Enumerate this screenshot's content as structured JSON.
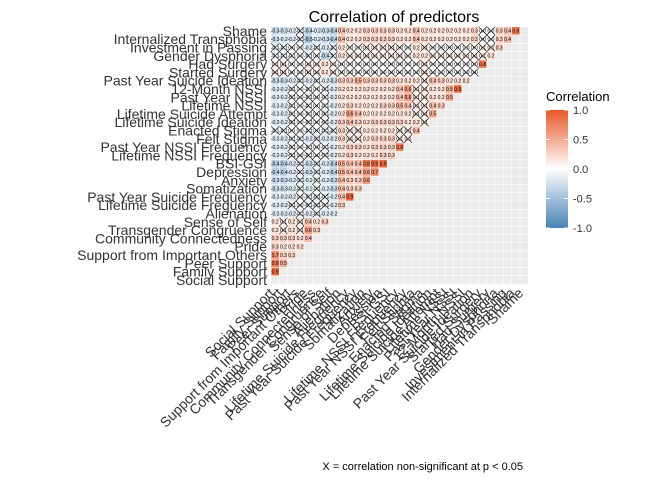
{
  "chart_data": {
    "type": "heatmap",
    "title": "Correlation of predictors",
    "caption": "X = correlation non-significant at p < 0.05",
    "legend": {
      "title": "Correlation",
      "ticks": [
        1.0,
        0.5,
        0.0,
        -0.5,
        -1.0
      ],
      "tick_labels": [
        "1.0",
        "0.5",
        "0.0",
        "-0.5",
        "-1.0"
      ],
      "placement": "right"
    },
    "colors": {
      "low": "#4682b4",
      "mid": "#ffffff",
      "high": "#e8582a",
      "background": "#ebebeb"
    },
    "variables": [
      "Social Support",
      "Family Support",
      "Peer Support",
      "Support from Important Others",
      "Pride",
      "Community Connectedness",
      "Transgender Congruence",
      "Sense of Self",
      "Alienation",
      "Lifetime Suicide Frequency",
      "Past Year Suicide Frequency",
      "Somatization",
      "Anxiety",
      "Depression",
      "BSI-GSI",
      "Lifetime NSSI Frequency",
      "Past Year NSSI Frequency",
      "Felt Stigma",
      "Enacted Stigma",
      "Lifetime Suicide Ideation",
      "Lifetime Suicide Attempt",
      "Lifetime NSSI",
      "Past Year NSSI",
      "12-Month NSSI",
      "Past Year Suicide Ideation",
      "Started Surgery",
      "Had Surgery",
      "Gender Dysphoria",
      "Investment in Passing",
      "Internalized Transphobia",
      "Shame"
    ],
    "ylim_note": "lower-triangle correlation matrix",
    "values_rows": [
      [
        0.9
      ],
      [
        0.8,
        0.5
      ],
      [
        0.7,
        0.3,
        0.3
      ],
      [
        0.3,
        0.2,
        0.2,
        0.2
      ],
      [
        0.3,
        0.3,
        0.3,
        0.2,
        0.4
      ],
      [
        0.2,
        0.1,
        0.2,
        0.1,
        0.6,
        0.3
      ],
      [
        0.2,
        0.1,
        0.2,
        0.1,
        0.4,
        0.2,
        0.3
      ],
      [
        -0.2,
        -0.2,
        -0.2,
        -0.1,
        -0.2,
        -0.1,
        -0.2,
        -0.2
      ],
      [
        -0.2,
        -0.2,
        -0.1,
        0.0,
        -0.1,
        -0.1,
        -0.1,
        -0.2,
        0.3
      ],
      [
        -0.2,
        -0.2,
        -0.2,
        0.0,
        -0.1,
        -0.1,
        -0.1,
        -0.2,
        0.4,
        0.9
      ],
      [
        -0.3,
        -0.3,
        -0.2,
        -0.1,
        -0.2,
        -0.1,
        -0.2,
        -0.3,
        0.4,
        0.3,
        0.3
      ],
      [
        -0.3,
        -0.3,
        -0.2,
        -0.1,
        -0.2,
        -0.1,
        -0.2,
        -0.3,
        0.4,
        0.3,
        0.3,
        0.6
      ],
      [
        -0.4,
        -0.4,
        -0.2,
        -0.1,
        -0.3,
        -0.1,
        -0.2,
        -0.4,
        0.5,
        0.4,
        0.4,
        0.6,
        0.7
      ],
      [
        -0.4,
        -0.4,
        -0.2,
        -0.1,
        -0.3,
        -0.1,
        -0.2,
        -0.4,
        0.5,
        0.4,
        0.4,
        0.8,
        0.9,
        0.9
      ],
      [
        -0.2,
        -0.2,
        -0.1,
        0.0,
        -0.1,
        0.0,
        -0.1,
        -0.2,
        0.2,
        0.3,
        0.2,
        0.2,
        0.2,
        0.3,
        0.3
      ],
      [
        -0.2,
        -0.2,
        -0.1,
        0.0,
        -0.1,
        0.0,
        -0.1,
        -0.2,
        0.2,
        0.3,
        0.3,
        0.2,
        0.3,
        0.3,
        0.3,
        0.8
      ],
      [
        -0.2,
        -0.2,
        -0.1,
        -0.1,
        -0.2,
        -0.1,
        -0.2,
        -0.2,
        0.3,
        0.1,
        0.1,
        0.2,
        0.3,
        0.3,
        0.3,
        0.1,
        0.1
      ],
      [
        -0.1,
        -0.1,
        0.0,
        0.0,
        -0.1,
        0.0,
        -0.1,
        -0.1,
        0.3,
        0.1,
        0.1,
        0.2,
        0.2,
        0.2,
        0.2,
        0.1,
        0.1,
        0.4
      ],
      [
        -0.2,
        -0.2,
        -0.1,
        0.0,
        -0.1,
        0.0,
        -0.1,
        -0.2,
        0.3,
        0.4,
        0.3,
        0.2,
        0.3,
        0.3,
        0.3,
        0.3,
        0.2,
        0.2,
        0.1
      ],
      [
        -0.2,
        -0.2,
        -0.1,
        0.0,
        -0.1,
        0.0,
        -0.1,
        -0.2,
        0.2,
        0.6,
        0.4,
        0.2,
        0.2,
        0.2,
        0.2,
        0.2,
        0.2,
        0.1,
        0.1,
        0.5
      ],
      [
        -0.2,
        -0.2,
        -0.1,
        0.0,
        -0.1,
        0.0,
        -0.1,
        -0.2,
        0.2,
        0.3,
        0.2,
        0.2,
        0.2,
        0.3,
        0.3,
        0.5,
        0.4,
        0.1,
        0.1,
        0.4,
        0.3
      ],
      [
        -0.2,
        -0.2,
        -0.1,
        0.0,
        -0.1,
        0.0,
        -0.1,
        -0.2,
        0.2,
        0.2,
        0.2,
        0.2,
        0.2,
        0.2,
        0.2,
        0.4,
        0.6,
        0.1,
        0.1,
        0.2,
        0.2,
        0.5
      ],
      [
        -0.2,
        -0.2,
        -0.1,
        0.0,
        -0.1,
        0.0,
        -0.1,
        -0.2,
        0.2,
        0.2,
        0.2,
        0.2,
        0.2,
        0.2,
        0.2,
        0.4,
        0.6,
        0.1,
        0.1,
        0.2,
        0.2,
        0.5,
        0.9
      ],
      [
        -0.3,
        -0.3,
        -0.2,
        -0.1,
        -0.2,
        -0.1,
        -0.2,
        -0.3,
        0.3,
        0.3,
        0.5,
        0.3,
        0.3,
        0.3,
        0.3,
        0.2,
        0.2,
        0.2,
        0.1,
        0.4,
        0.3,
        0.2,
        0.2,
        0.2
      ],
      [
        0.1,
        0.1,
        0.0,
        0.0,
        0.1,
        0.1,
        0.2,
        0.1,
        0.0,
        0.0,
        0.0,
        0.0,
        0.0,
        0.0,
        0.0,
        0.0,
        0.0,
        0.0,
        0.1,
        0.0,
        0.0,
        0.0,
        0.0,
        0.0,
        0.0
      ],
      [
        0.1,
        0.1,
        0.0,
        0.0,
        0.1,
        0.1,
        0.2,
        0.1,
        0.0,
        0.0,
        0.0,
        0.0,
        0.0,
        0.0,
        0.0,
        0.0,
        0.0,
        0.0,
        0.1,
        0.0,
        0.0,
        0.0,
        0.0,
        0.0,
        0.0,
        0.8
      ],
      [
        -0.1,
        -0.1,
        -0.1,
        0.0,
        -0.1,
        0.0,
        -0.4,
        -0.1,
        0.2,
        0.1,
        0.1,
        0.1,
        0.1,
        0.1,
        0.1,
        0.1,
        0.1,
        0.2,
        0.2,
        0.1,
        0.1,
        0.1,
        0.1,
        0.1,
        0.1,
        0.1,
        0.2
      ],
      [
        -0.1,
        -0.1,
        0.0,
        0.0,
        -0.2,
        -0.1,
        -0.2,
        -0.1,
        0.2,
        0.0,
        0.0,
        0.1,
        0.1,
        0.1,
        0.1,
        0.0,
        0.0,
        0.2,
        0.1,
        0.0,
        0.0,
        0.0,
        0.0,
        0.0,
        0.0,
        0.1,
        0.1,
        0.3
      ],
      [
        -0.3,
        -0.2,
        -0.2,
        -0.1,
        -0.5,
        -0.2,
        -0.3,
        -0.4,
        0.4,
        0.2,
        0.2,
        0.3,
        0.3,
        0.3,
        0.3,
        0.2,
        0.2,
        0.4,
        0.2,
        0.2,
        0.2,
        0.2,
        0.2,
        0.2,
        0.3,
        0.0,
        0.0,
        0.3,
        0.4
      ],
      [
        -0.3,
        -0.3,
        -0.2,
        -0.1,
        -0.4,
        -0.2,
        -0.3,
        -0.4,
        0.4,
        0.2,
        0.2,
        0.3,
        0.3,
        0.3,
        0.3,
        0.2,
        0.2,
        0.4,
        0.2,
        0.2,
        0.2,
        0.2,
        0.2,
        0.2,
        0.3,
        0.0,
        0.0,
        0.3,
        0.4,
        0.8
      ]
    ],
    "nonsignificant_threshold": 0.12
  }
}
